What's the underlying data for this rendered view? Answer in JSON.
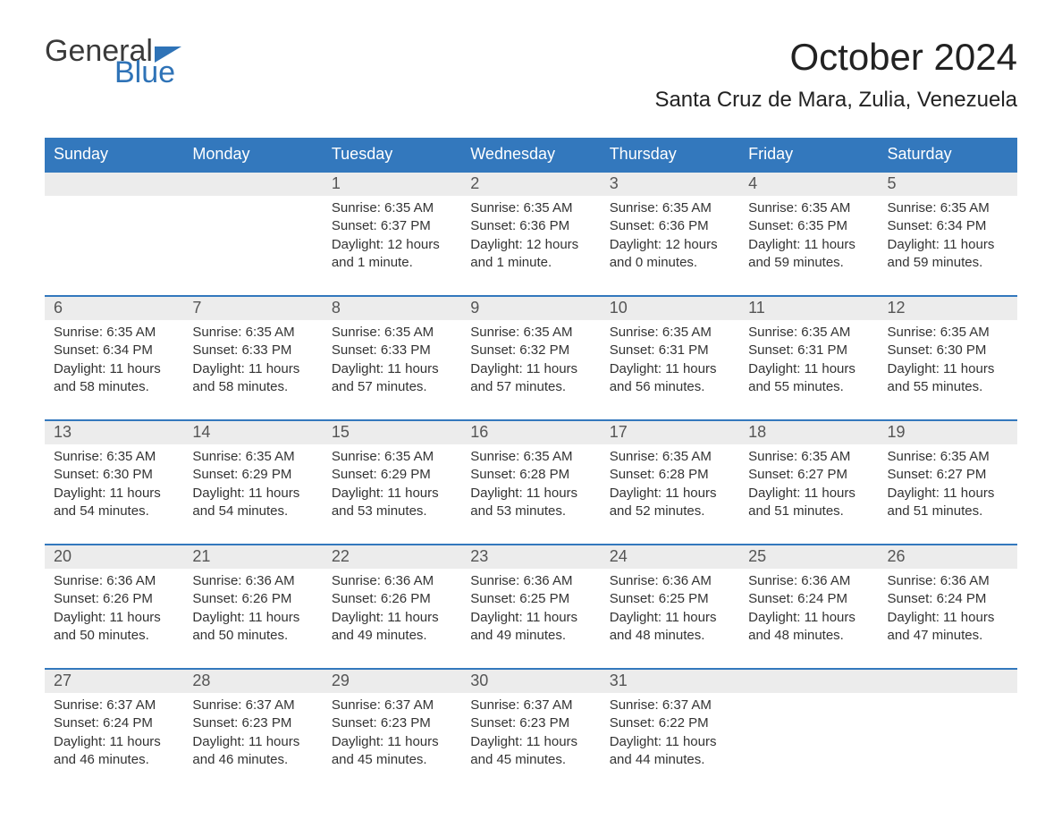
{
  "logo": {
    "part1": "General",
    "part2": "Blue"
  },
  "title": "October 2024",
  "location": "Santa Cruz de Mara, Zulia, Venezuela",
  "colors": {
    "header_bg": "#3378bd",
    "header_text": "#ffffff",
    "daynum_bg": "#ececec",
    "body_text": "#333333",
    "row_border": "#3378bd",
    "logo_accent": "#2f73b7"
  },
  "fonts": {
    "title_size_pt": 42,
    "location_size_pt": 24,
    "header_size_pt": 18,
    "daynum_size_pt": 18,
    "body_size_pt": 15,
    "logo_size_pt": 34
  },
  "weekdays": [
    "Sunday",
    "Monday",
    "Tuesday",
    "Wednesday",
    "Thursday",
    "Friday",
    "Saturday"
  ],
  "weeks": [
    [
      null,
      null,
      {
        "n": "1",
        "sunrise": "6:35 AM",
        "sunset": "6:37 PM",
        "daylight": "12 hours and 1 minute."
      },
      {
        "n": "2",
        "sunrise": "6:35 AM",
        "sunset": "6:36 PM",
        "daylight": "12 hours and 1 minute."
      },
      {
        "n": "3",
        "sunrise": "6:35 AM",
        "sunset": "6:36 PM",
        "daylight": "12 hours and 0 minutes."
      },
      {
        "n": "4",
        "sunrise": "6:35 AM",
        "sunset": "6:35 PM",
        "daylight": "11 hours and 59 minutes."
      },
      {
        "n": "5",
        "sunrise": "6:35 AM",
        "sunset": "6:34 PM",
        "daylight": "11 hours and 59 minutes."
      }
    ],
    [
      {
        "n": "6",
        "sunrise": "6:35 AM",
        "sunset": "6:34 PM",
        "daylight": "11 hours and 58 minutes."
      },
      {
        "n": "7",
        "sunrise": "6:35 AM",
        "sunset": "6:33 PM",
        "daylight": "11 hours and 58 minutes."
      },
      {
        "n": "8",
        "sunrise": "6:35 AM",
        "sunset": "6:33 PM",
        "daylight": "11 hours and 57 minutes."
      },
      {
        "n": "9",
        "sunrise": "6:35 AM",
        "sunset": "6:32 PM",
        "daylight": "11 hours and 57 minutes."
      },
      {
        "n": "10",
        "sunrise": "6:35 AM",
        "sunset": "6:31 PM",
        "daylight": "11 hours and 56 minutes."
      },
      {
        "n": "11",
        "sunrise": "6:35 AM",
        "sunset": "6:31 PM",
        "daylight": "11 hours and 55 minutes."
      },
      {
        "n": "12",
        "sunrise": "6:35 AM",
        "sunset": "6:30 PM",
        "daylight": "11 hours and 55 minutes."
      }
    ],
    [
      {
        "n": "13",
        "sunrise": "6:35 AM",
        "sunset": "6:30 PM",
        "daylight": "11 hours and 54 minutes."
      },
      {
        "n": "14",
        "sunrise": "6:35 AM",
        "sunset": "6:29 PM",
        "daylight": "11 hours and 54 minutes."
      },
      {
        "n": "15",
        "sunrise": "6:35 AM",
        "sunset": "6:29 PM",
        "daylight": "11 hours and 53 minutes."
      },
      {
        "n": "16",
        "sunrise": "6:35 AM",
        "sunset": "6:28 PM",
        "daylight": "11 hours and 53 minutes."
      },
      {
        "n": "17",
        "sunrise": "6:35 AM",
        "sunset": "6:28 PM",
        "daylight": "11 hours and 52 minutes."
      },
      {
        "n": "18",
        "sunrise": "6:35 AM",
        "sunset": "6:27 PM",
        "daylight": "11 hours and 51 minutes."
      },
      {
        "n": "19",
        "sunrise": "6:35 AM",
        "sunset": "6:27 PM",
        "daylight": "11 hours and 51 minutes."
      }
    ],
    [
      {
        "n": "20",
        "sunrise": "6:36 AM",
        "sunset": "6:26 PM",
        "daylight": "11 hours and 50 minutes."
      },
      {
        "n": "21",
        "sunrise": "6:36 AM",
        "sunset": "6:26 PM",
        "daylight": "11 hours and 50 minutes."
      },
      {
        "n": "22",
        "sunrise": "6:36 AM",
        "sunset": "6:26 PM",
        "daylight": "11 hours and 49 minutes."
      },
      {
        "n": "23",
        "sunrise": "6:36 AM",
        "sunset": "6:25 PM",
        "daylight": "11 hours and 49 minutes."
      },
      {
        "n": "24",
        "sunrise": "6:36 AM",
        "sunset": "6:25 PM",
        "daylight": "11 hours and 48 minutes."
      },
      {
        "n": "25",
        "sunrise": "6:36 AM",
        "sunset": "6:24 PM",
        "daylight": "11 hours and 48 minutes."
      },
      {
        "n": "26",
        "sunrise": "6:36 AM",
        "sunset": "6:24 PM",
        "daylight": "11 hours and 47 minutes."
      }
    ],
    [
      {
        "n": "27",
        "sunrise": "6:37 AM",
        "sunset": "6:24 PM",
        "daylight": "11 hours and 46 minutes."
      },
      {
        "n": "28",
        "sunrise": "6:37 AM",
        "sunset": "6:23 PM",
        "daylight": "11 hours and 46 minutes."
      },
      {
        "n": "29",
        "sunrise": "6:37 AM",
        "sunset": "6:23 PM",
        "daylight": "11 hours and 45 minutes."
      },
      {
        "n": "30",
        "sunrise": "6:37 AM",
        "sunset": "6:23 PM",
        "daylight": "11 hours and 45 minutes."
      },
      {
        "n": "31",
        "sunrise": "6:37 AM",
        "sunset": "6:22 PM",
        "daylight": "11 hours and 44 minutes."
      },
      null,
      null
    ]
  ],
  "labels": {
    "sunrise_prefix": "Sunrise: ",
    "sunset_prefix": "Sunset: ",
    "daylight_prefix": "Daylight: "
  }
}
